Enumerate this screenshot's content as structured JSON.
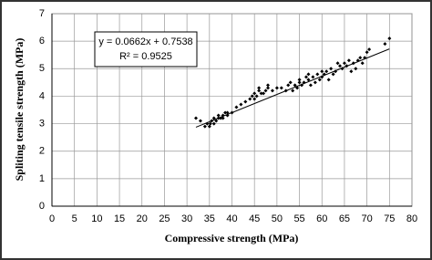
{
  "chart_data": {
    "type": "scatter",
    "xlabel": "Compressive strength (MPa)",
    "ylabel": "Spliting tensile strength (MPa)",
    "xlim": [
      0,
      80
    ],
    "xticks": [
      0,
      5,
      10,
      15,
      20,
      25,
      30,
      35,
      40,
      45,
      50,
      55,
      60,
      65,
      70,
      75,
      80
    ],
    "ylim": [
      0,
      7
    ],
    "yticks": [
      0,
      1,
      2,
      3,
      4,
      5,
      6,
      7
    ],
    "grid": true,
    "color": "#000000",
    "trendline": {
      "slope": 0.0662,
      "intercept": 0.7538,
      "equation": "y = 0.0662x + 0.7538",
      "r2": "R² = 0.9525"
    },
    "x": [
      32,
      33,
      34,
      34.5,
      35,
      35.2,
      35.5,
      36,
      36,
      36.5,
      37,
      37,
      37.5,
      38,
      38,
      38.5,
      39,
      39,
      40,
      41,
      42,
      43,
      44,
      44.5,
      45,
      45,
      45.5,
      46,
      46,
      46.5,
      47,
      47.5,
      48,
      48,
      49,
      50,
      51,
      52,
      52.5,
      53,
      53.5,
      54,
      54.5,
      55,
      55,
      55.5,
      56,
      56.5,
      57,
      57,
      57.5,
      58,
      58.5,
      59,
      59.5,
      60,
      60,
      60.5,
      61,
      61.5,
      62,
      62.5,
      63,
      63.5,
      64,
      64.5,
      65,
      65.5,
      66,
      66.5,
      67,
      67.5,
      68,
      68.5,
      69,
      69.5,
      70,
      70.5,
      74,
      75
    ],
    "values": [
      3.2,
      3.1,
      2.9,
      3.0,
      2.9,
      3.0,
      3.1,
      3.0,
      3.2,
      3.1,
      3.2,
      3.3,
      3.2,
      3.3,
      3.2,
      3.4,
      3.3,
      3.4,
      3.4,
      3.6,
      3.7,
      3.8,
      3.9,
      4.0,
      3.9,
      4.1,
      4.0,
      4.2,
      4.3,
      4.1,
      4.1,
      4.2,
      4.3,
      4.4,
      4.2,
      4.3,
      4.3,
      4.2,
      4.4,
      4.5,
      4.2,
      4.4,
      4.3,
      4.5,
      4.6,
      4.4,
      4.5,
      4.7,
      4.6,
      4.8,
      4.4,
      4.7,
      4.5,
      4.8,
      4.6,
      4.7,
      4.9,
      4.8,
      4.9,
      4.6,
      5.0,
      4.8,
      4.9,
      5.2,
      5.1,
      5.0,
      5.2,
      5.1,
      5.3,
      4.9,
      5.2,
      5.0,
      5.3,
      5.4,
      5.2,
      5.4,
      5.6,
      5.7,
      5.9,
      6.1
    ]
  }
}
